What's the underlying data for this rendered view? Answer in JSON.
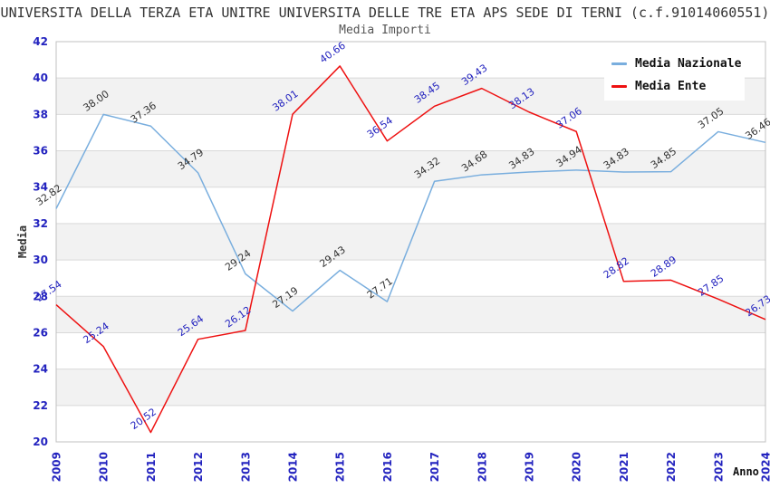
{
  "page": {
    "title": "UNIVERSITA DELLA TERZA ETA UNITRE UNIVERSITA DELLE TRE ETA APS SEDE DI TERNI (c.f.91014060551)"
  },
  "chart_data": {
    "type": "line",
    "title": "Media Importi",
    "xlabel": "Anno",
    "ylabel": "Media",
    "x": [
      2009,
      2010,
      2011,
      2012,
      2013,
      2014,
      2015,
      2016,
      2017,
      2018,
      2019,
      2020,
      2021,
      2022,
      2023,
      2024
    ],
    "series": [
      {
        "name": "Media Nazionale",
        "color": "#79aede",
        "label_color": "#333333",
        "values": [
          32.82,
          38.0,
          37.36,
          34.79,
          29.24,
          27.19,
          29.43,
          27.71,
          34.32,
          34.68,
          34.83,
          34.94,
          34.83,
          34.85,
          37.05,
          36.46
        ]
      },
      {
        "name": "Media Ente",
        "color": "#ee1111",
        "label_color": "#2323bf",
        "values": [
          27.54,
          25.24,
          20.52,
          25.64,
          26.12,
          38.01,
          40.66,
          36.54,
          38.45,
          39.43,
          38.13,
          37.06,
          28.82,
          28.89,
          27.85,
          26.73
        ]
      }
    ],
    "ylim": [
      20,
      42
    ],
    "y_tick_step": 2,
    "tick_color": "#2323bf",
    "band_colors": [
      "#ffffff",
      "#f2f2f2"
    ],
    "grid_color": "#d9d9d9",
    "border_color": "#c0c0c0",
    "legend_position": "top-right",
    "grid": "horizontal-bands"
  }
}
